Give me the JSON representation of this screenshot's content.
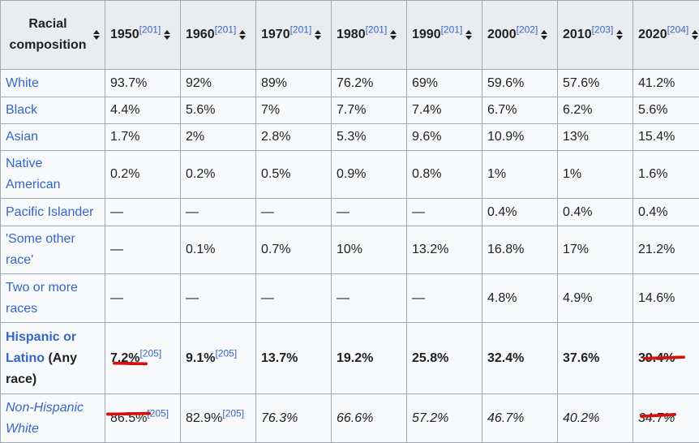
{
  "header": {
    "first_col": "Racial composition",
    "years": [
      {
        "year": "1950",
        "ref": "[201]"
      },
      {
        "year": "1960",
        "ref": "[201]"
      },
      {
        "year": "1970",
        "ref": "[201]"
      },
      {
        "year": "1980",
        "ref": "[201]"
      },
      {
        "year": "1990",
        "ref": "[201]"
      },
      {
        "year": "2000",
        "ref": "[202]"
      },
      {
        "year": "2010",
        "ref": "[203]"
      },
      {
        "year": "2020",
        "ref": "[204]"
      }
    ]
  },
  "rows": [
    {
      "label": "White",
      "values": [
        "93.7%",
        "92%",
        "89%",
        "76.2%",
        "69%",
        "59.6%",
        "57.6%",
        "41.2%"
      ]
    },
    {
      "label": "Black",
      "values": [
        "4.4%",
        "5.6%",
        "7%",
        "7.7%",
        "7.4%",
        "6.7%",
        "6.2%",
        "5.6%"
      ]
    },
    {
      "label": "Asian",
      "values": [
        "1.7%",
        "2%",
        "2.8%",
        "5.3%",
        "9.6%",
        "10.9%",
        "13%",
        "15.4%"
      ]
    },
    {
      "label": "Native American",
      "values": [
        "0.2%",
        "0.2%",
        "0.5%",
        "0.9%",
        "0.8%",
        "1%",
        "1%",
        "1.6%"
      ]
    },
    {
      "label": "Pacific Islander",
      "values": [
        "—",
        "—",
        "—",
        "—",
        "—",
        "0.4%",
        "0.4%",
        "0.4%"
      ]
    },
    {
      "label": "'Some other race'",
      "values": [
        "—",
        "0.1%",
        "0.7%",
        "10%",
        "13.2%",
        "16.8%",
        "17%",
        "21.2%"
      ]
    },
    {
      "label": "Two or more races",
      "values": [
        "—",
        "—",
        "—",
        "—",
        "—",
        "4.8%",
        "4.9%",
        "14.6%"
      ]
    },
    {
      "label": "Hispanic or Latino",
      "label_suffix": " (Any race)",
      "values": [
        "7.2%",
        "9.1%",
        "13.7%",
        "19.2%",
        "25.8%",
        "32.4%",
        "37.6%",
        "39.4%"
      ],
      "refs": [
        "[205]",
        "[205]",
        "",
        "",
        "",
        "",
        "",
        ""
      ]
    },
    {
      "label": "Non-Hispanic White",
      "values": [
        "86.5%",
        "82.9%",
        "76.3%",
        "66.6%",
        "57.2%",
        "46.7%",
        "40.2%",
        "34.7%"
      ],
      "refs": [
        "[205]",
        "[205]",
        "",
        "",
        "",
        "",
        "",
        ""
      ]
    }
  ],
  "annotation_color": "#d1130f"
}
